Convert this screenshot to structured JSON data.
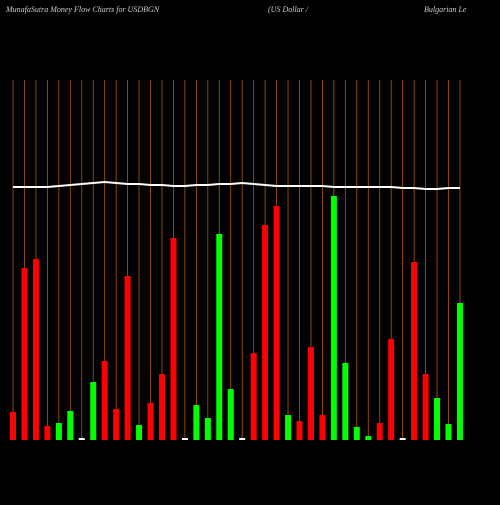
{
  "chart_data": {
    "type": "bar",
    "title": "MunafaSutra  Money Flow  Charts for USDBGN",
    "subtitle": "(US Dollar /",
    "subtitle2": "Bulgarian  Le",
    "values": [
      28,
      172,
      181,
      14,
      17,
      29,
      2,
      58,
      79,
      31,
      164,
      15,
      37,
      66,
      202,
      2,
      35,
      22,
      206,
      51,
      2,
      87,
      215,
      234,
      25,
      19,
      93,
      25,
      244,
      77,
      13,
      4,
      17,
      101,
      2,
      178,
      66,
      42,
      16,
      137
    ],
    "colors": [
      "#ff0000",
      "#ff0000",
      "#ff0000",
      "#ff0000",
      "#00ff00",
      "#00ff00",
      "#ffffff",
      "#00ff00",
      "#ff0000",
      "#ff0000",
      "#ff0000",
      "#00ff00",
      "#ff0000",
      "#ff0000",
      "#ff0000",
      "#ffffff",
      "#00ff00",
      "#00ff00",
      "#00ff00",
      "#00ff00",
      "#ffffff",
      "#ff0000",
      "#ff0000",
      "#ff0000",
      "#00ff00",
      "#ff0000",
      "#ff0000",
      "#ff0000",
      "#00ff00",
      "#00ff00",
      "#00ff00",
      "#00ff00",
      "#ff0000",
      "#ff0000",
      "#ffffff",
      "#ff0000",
      "#ff0000",
      "#00ff00",
      "#00ff00",
      "#00ff00"
    ],
    "line": {
      "color": "#ffffff",
      "values": [
        253,
        253,
        253,
        253,
        254,
        255,
        256,
        257,
        258,
        257,
        256,
        256,
        255,
        255,
        254,
        254,
        255,
        255,
        256,
        256,
        257,
        256,
        255,
        254,
        254,
        254,
        254,
        254,
        253,
        253,
        253,
        253,
        253,
        253,
        252,
        252,
        251,
        251,
        252,
        252
      ]
    },
    "ylim": [
      0,
      360
    ],
    "background": "#000000",
    "gridcolor": "#b35900"
  }
}
